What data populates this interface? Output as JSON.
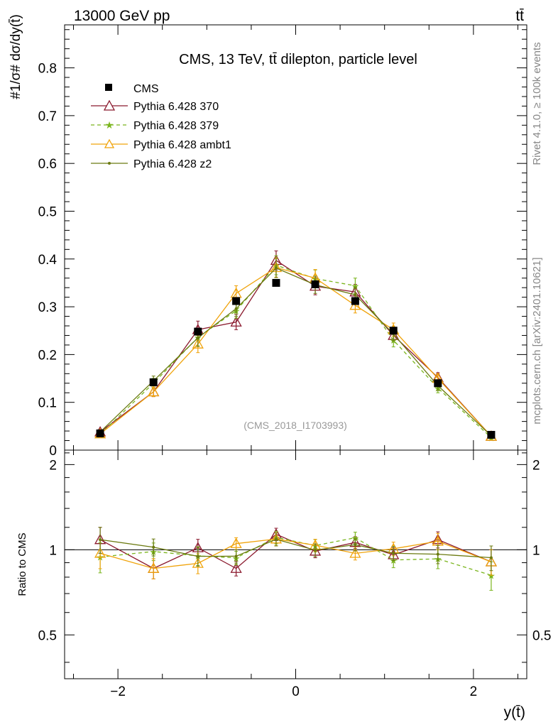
{
  "header": {
    "left": "13000 GeV pp",
    "right": "tt̄"
  },
  "side_text": {
    "rivet": "Rivet 4.1.0, ≥ 100k events",
    "mcplots": "mcplots.cern.ch [arXiv:2401.10621]"
  },
  "chart_data": {
    "type": "line",
    "title": "CMS, 13 TeV, tt̄ dilepton, particle level",
    "watermark": "(CMS_2018_I1703993)",
    "xlabel": "y(t̄)",
    "ylabel": "#1/σ# dσ/dy(t̄)",
    "ratio_ylabel": "Ratio to CMS",
    "xlim": [
      -2.6,
      2.6
    ],
    "ylim": [
      0,
      0.89
    ],
    "ratio_ylim": [
      0.35,
      2.25
    ],
    "x_ticks": [
      -2,
      0,
      2
    ],
    "x_tick_labels": [
      "−2",
      "0",
      "2"
    ],
    "y_ticks": [
      0,
      0.1,
      0.2,
      0.3,
      0.4,
      0.5,
      0.6,
      0.7,
      0.8
    ],
    "y_tick_labels": [
      "0",
      "0.1",
      "0.2",
      "0.3",
      "0.4",
      "0.5",
      "0.6",
      "0.7",
      "0.8"
    ],
    "ratio_ticks": [
      0.5,
      1,
      2
    ],
    "ratio_tick_labels": [
      "0.5",
      "1",
      "2"
    ],
    "x": [
      -2.2,
      -1.6,
      -1.1,
      -0.67,
      -0.22,
      0.22,
      0.67,
      1.1,
      1.6,
      2.2
    ],
    "data": {
      "name": "CMS",
      "values": [
        0.035,
        0.142,
        0.248,
        0.312,
        0.35,
        0.347,
        0.312,
        0.25,
        0.14,
        0.032
      ]
    },
    "series": [
      {
        "name": "Pythia 6.428 370",
        "color": "#8b1a2e",
        "dash": "",
        "marker": "triangle-open",
        "values": [
          0.038,
          0.122,
          0.252,
          0.268,
          0.397,
          0.343,
          0.331,
          0.24,
          0.152,
          0.029
        ],
        "errors": [
          0.004,
          0.01,
          0.018,
          0.016,
          0.02,
          0.018,
          0.016,
          0.014,
          0.01,
          0.003
        ]
      },
      {
        "name": "Pythia 6.428 379",
        "color": "#7ab51d",
        "dash": "5,4",
        "marker": "star",
        "values": [
          0.033,
          0.14,
          0.236,
          0.292,
          0.387,
          0.359,
          0.344,
          0.23,
          0.13,
          0.026
        ],
        "errors": [
          0.004,
          0.01,
          0.018,
          0.016,
          0.02,
          0.018,
          0.016,
          0.014,
          0.01,
          0.003
        ]
      },
      {
        "name": "Pythia 6.428 ambt1",
        "color": "#f0a30a",
        "dash": "",
        "marker": "triangle-open",
        "values": [
          0.034,
          0.122,
          0.222,
          0.328,
          0.382,
          0.36,
          0.303,
          0.252,
          0.15,
          0.029
        ],
        "errors": [
          0.004,
          0.01,
          0.018,
          0.016,
          0.02,
          0.018,
          0.016,
          0.014,
          0.01,
          0.003
        ]
      },
      {
        "name": "Pythia 6.428 z2",
        "color": "#6b7a10",
        "dash": "",
        "marker": "dot",
        "values": [
          0.038,
          0.145,
          0.235,
          0.296,
          0.381,
          0.346,
          0.325,
          0.243,
          0.135,
          0.03
        ],
        "errors": [
          0.004,
          0.01,
          0.018,
          0.016,
          0.02,
          0.018,
          0.016,
          0.014,
          0.01,
          0.003
        ]
      }
    ]
  }
}
